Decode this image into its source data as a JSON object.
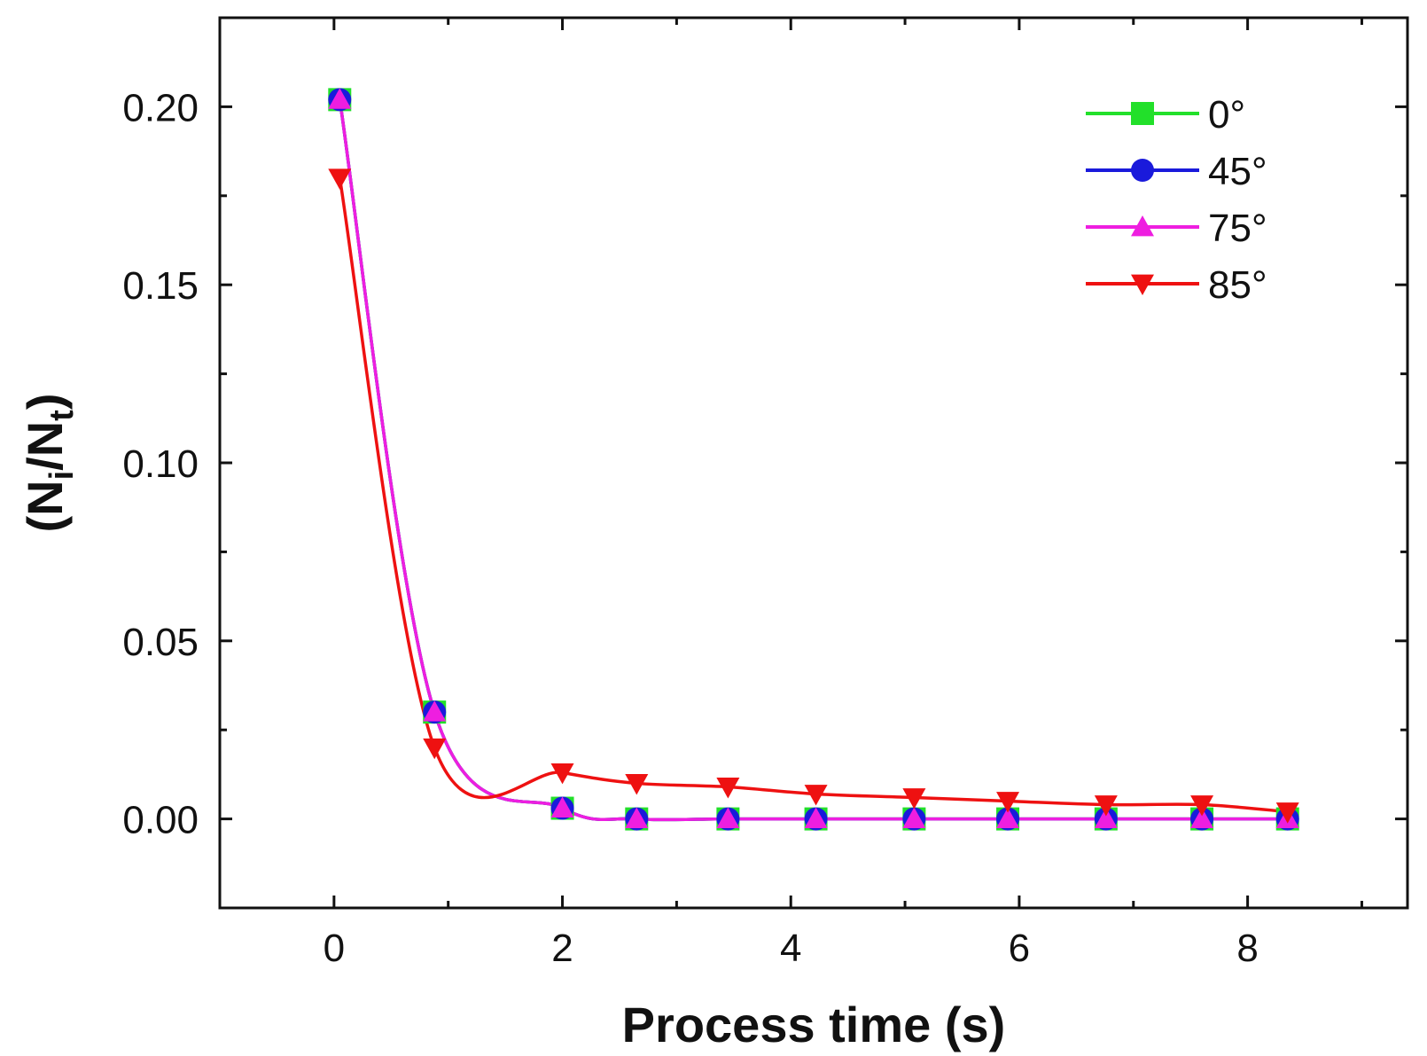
{
  "chart_data": {
    "type": "line",
    "title": "",
    "xlabel": "Process time (s)",
    "ylabel_main": "(N",
    "ylabel_sub1": "i",
    "ylabel_mid": "/N",
    "ylabel_sub2": "t",
    "ylabel_end": ")",
    "xlim": [
      -1,
      9.4
    ],
    "ylim": [
      -0.025,
      0.225
    ],
    "xticks": [
      0,
      2,
      4,
      6,
      8
    ],
    "xtick_labels": [
      "0",
      "2",
      "4",
      "6",
      "8"
    ],
    "yticks": [
      0.0,
      0.05,
      0.1,
      0.15,
      0.2
    ],
    "ytick_labels": [
      "0.00",
      "0.05",
      "0.10",
      "0.15",
      "0.20"
    ],
    "legend_position": "top-right",
    "series": [
      {
        "name": "0°",
        "color": "#22e02a",
        "marker": "square",
        "x": [
          0.05,
          0.88,
          2.0,
          2.65,
          3.45,
          4.22,
          5.08,
          5.9,
          6.76,
          7.6,
          8.35
        ],
        "y": [
          0.202,
          0.03,
          0.003,
          0.0,
          0.0,
          0.0,
          0.0,
          0.0,
          0.0,
          0.0,
          0.0
        ]
      },
      {
        "name": "45°",
        "color": "#1a1adb",
        "marker": "circle",
        "x": [
          0.05,
          0.88,
          2.0,
          2.65,
          3.45,
          4.22,
          5.08,
          5.9,
          6.76,
          7.6,
          8.35
        ],
        "y": [
          0.202,
          0.03,
          0.003,
          0.0,
          0.0,
          0.0,
          0.0,
          0.0,
          0.0,
          0.0,
          0.0
        ]
      },
      {
        "name": "75°",
        "color": "#ee1ee0",
        "marker": "triangle-up",
        "x": [
          0.05,
          0.88,
          2.0,
          2.65,
          3.45,
          4.22,
          5.08,
          5.9,
          6.76,
          7.6,
          8.35
        ],
        "y": [
          0.202,
          0.03,
          0.003,
          0.0,
          0.0,
          0.0,
          0.0,
          0.0,
          0.0,
          0.0,
          0.0
        ]
      },
      {
        "name": "85°",
        "color": "#ee1111",
        "marker": "triangle-down",
        "x": [
          0.05,
          0.88,
          2.0,
          2.65,
          3.45,
          4.22,
          5.08,
          5.9,
          6.76,
          7.6,
          8.35
        ],
        "y": [
          0.18,
          0.02,
          0.013,
          0.01,
          0.009,
          0.007,
          0.006,
          0.005,
          0.004,
          0.004,
          0.002
        ]
      }
    ]
  }
}
